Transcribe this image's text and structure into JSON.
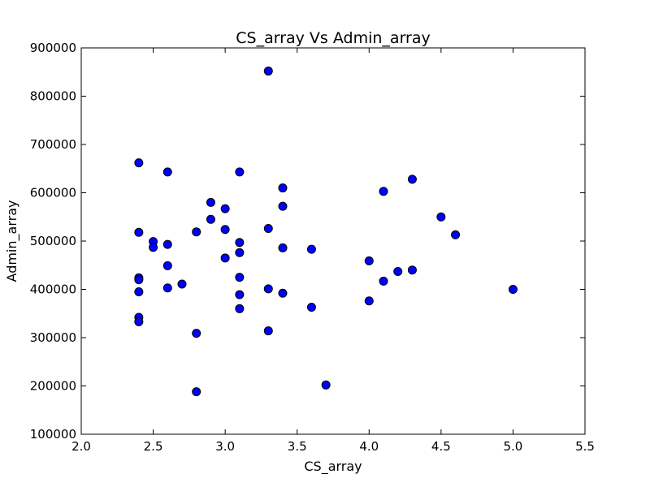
{
  "chart_data": {
    "type": "scatter",
    "title": "CS_array Vs Admin_array",
    "xlabel": "CS_array",
    "ylabel": "Admin_array",
    "xlim": [
      2.0,
      5.5
    ],
    "ylim": [
      100000,
      900000
    ],
    "xticks": [
      "2.0",
      "2.5",
      "3.0",
      "3.5",
      "4.0",
      "4.5",
      "5.0",
      "5.5"
    ],
    "yticks": [
      "100000",
      "200000",
      "300000",
      "400000",
      "500000",
      "600000",
      "700000",
      "800000",
      "900000"
    ],
    "grid": false,
    "marker_color": "#0000ff",
    "points": [
      [
        2.4,
        662000
      ],
      [
        2.4,
        518000
      ],
      [
        2.4,
        424000
      ],
      [
        2.4,
        420000
      ],
      [
        2.4,
        395000
      ],
      [
        2.4,
        342000
      ],
      [
        2.4,
        333000
      ],
      [
        2.5,
        499000
      ],
      [
        2.5,
        487000
      ],
      [
        2.6,
        643000
      ],
      [
        2.6,
        493000
      ],
      [
        2.6,
        449000
      ],
      [
        2.6,
        403000
      ],
      [
        2.7,
        411000
      ],
      [
        2.8,
        519000
      ],
      [
        2.8,
        309000
      ],
      [
        2.8,
        188000
      ],
      [
        2.9,
        580000
      ],
      [
        2.9,
        545000
      ],
      [
        3.0,
        567000
      ],
      [
        3.0,
        524000
      ],
      [
        3.0,
        465000
      ],
      [
        3.1,
        643000
      ],
      [
        3.1,
        497000
      ],
      [
        3.1,
        476000
      ],
      [
        3.1,
        425000
      ],
      [
        3.1,
        389000
      ],
      [
        3.1,
        360000
      ],
      [
        3.3,
        852000
      ],
      [
        3.3,
        526000
      ],
      [
        3.3,
        401000
      ],
      [
        3.3,
        314000
      ],
      [
        3.4,
        610000
      ],
      [
        3.4,
        572000
      ],
      [
        3.4,
        486000
      ],
      [
        3.4,
        392000
      ],
      [
        3.6,
        483000
      ],
      [
        3.6,
        363000
      ],
      [
        3.7,
        202000
      ],
      [
        4.0,
        459000
      ],
      [
        4.0,
        376000
      ],
      [
        4.1,
        603000
      ],
      [
        4.1,
        417000
      ],
      [
        4.2,
        437000
      ],
      [
        4.3,
        628000
      ],
      [
        4.3,
        440000
      ],
      [
        4.5,
        550000
      ],
      [
        4.6,
        513000
      ],
      [
        5.0,
        400000
      ]
    ]
  }
}
